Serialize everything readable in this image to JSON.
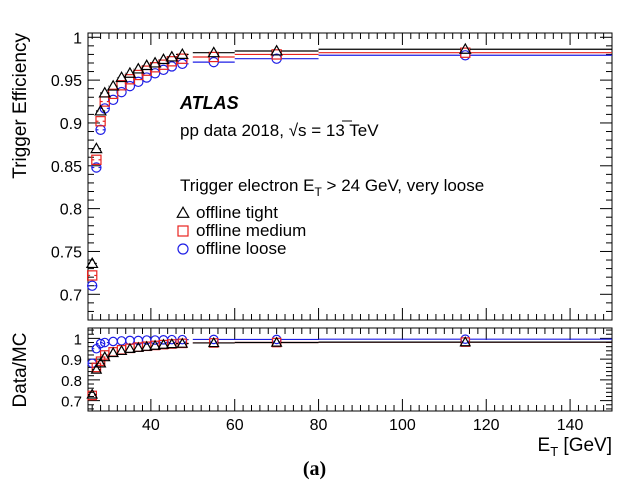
{
  "caption": "(a)",
  "chart_data": [
    {
      "type": "scatter",
      "panel": "main",
      "xlabel": "E_T [GeV]",
      "ylabel": "Trigger Efficiency",
      "xlim": [
        25,
        150
      ],
      "ylim": [
        0.67,
        1.005
      ],
      "x_ticks": [
        "40",
        "60",
        "80",
        "100",
        "120",
        "140"
      ],
      "y_ticks": [
        "0.7",
        "0.75",
        "0.8",
        "0.85",
        "0.9",
        "0.95",
        "1"
      ],
      "annotations": {
        "experiment": "ATLAS",
        "dataset_prefix": "pp data 2018, ",
        "dataset_sqrt": "√s",
        "dataset_suffix": " = 13 TeV",
        "trigger_prefix": "Trigger electron E",
        "trigger_sub": "T",
        "trigger_suffix": " > 24 GeV, very loose"
      },
      "legend_position": "center-left",
      "x": [
        26,
        27,
        28,
        29,
        31,
        33,
        35,
        37,
        39,
        41,
        43,
        45,
        47.5,
        55,
        70,
        115
      ],
      "x_err": [
        0.5,
        0.5,
        0.5,
        0.5,
        1,
        1,
        1,
        1,
        1,
        1,
        1,
        1,
        1.5,
        5,
        10,
        35
      ],
      "series": [
        {
          "name": "offline tight",
          "marker": "triangle",
          "color": "#000000",
          "values": [
            0.736,
            0.87,
            0.914,
            0.935,
            0.943,
            0.953,
            0.958,
            0.963,
            0.967,
            0.97,
            0.974,
            0.977,
            0.98,
            0.982,
            0.984,
            0.986
          ]
        },
        {
          "name": "offline medium",
          "marker": "square",
          "color": "#e8231f",
          "values": [
            0.722,
            0.857,
            0.902,
            0.925,
            0.934,
            0.944,
            0.951,
            0.956,
            0.961,
            0.965,
            0.968,
            0.972,
            0.975,
            0.977,
            0.98,
            0.982
          ]
        },
        {
          "name": "offline loose",
          "marker": "circle",
          "color": "#1e1ee6",
          "values": [
            0.71,
            0.848,
            0.892,
            0.917,
            0.927,
            0.936,
            0.943,
            0.948,
            0.953,
            0.958,
            0.962,
            0.966,
            0.969,
            0.971,
            0.975,
            0.979
          ]
        }
      ]
    },
    {
      "type": "scatter",
      "panel": "ratio",
      "xlabel": "E_T [GeV]",
      "ylabel": "Data/MC",
      "xlim": [
        25,
        150
      ],
      "ylim": [
        0.65,
        1.05
      ],
      "x_ticks": [
        "40",
        "60",
        "80",
        "100",
        "120",
        "140"
      ],
      "y_ticks": [
        "0.7",
        "0.8",
        "0.9",
        "1"
      ],
      "x": [
        26,
        27,
        28,
        29,
        31,
        33,
        35,
        37,
        39,
        41,
        43,
        45,
        47.5,
        55,
        70,
        115
      ],
      "x_err": [
        0.5,
        0.5,
        0.5,
        0.5,
        1,
        1,
        1,
        1,
        1,
        1,
        1,
        1,
        1.5,
        5,
        10,
        35
      ],
      "series": [
        {
          "name": "offline tight",
          "marker": "triangle",
          "color": "#000000",
          "values": [
            0.73,
            0.85,
            0.88,
            0.91,
            0.93,
            0.94,
            0.95,
            0.955,
            0.96,
            0.965,
            0.97,
            0.973,
            0.975,
            0.978,
            0.98,
            0.982
          ]
        },
        {
          "name": "offline medium",
          "marker": "square",
          "color": "#e8231f",
          "values": [
            0.725,
            0.86,
            0.89,
            0.92,
            0.935,
            0.945,
            0.952,
            0.958,
            0.962,
            0.966,
            0.97,
            0.973,
            0.976,
            0.978,
            0.98,
            0.982
          ]
        },
        {
          "name": "offline loose",
          "marker": "circle",
          "color": "#1e1ee6",
          "values": [
            0.88,
            0.95,
            0.975,
            0.98,
            0.985,
            0.988,
            0.99,
            0.99,
            0.992,
            0.992,
            0.993,
            0.994,
            0.994,
            0.995,
            0.995,
            0.996
          ]
        }
      ]
    }
  ]
}
